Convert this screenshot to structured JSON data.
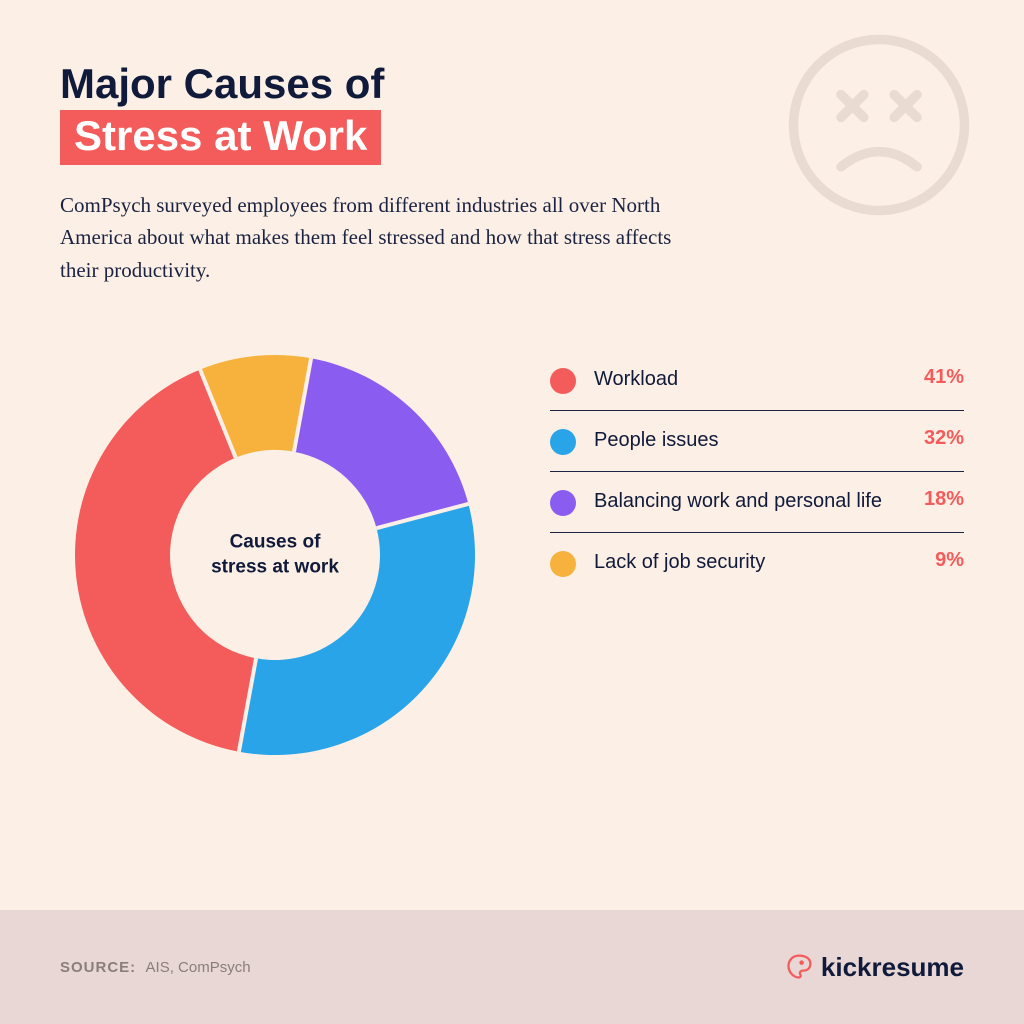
{
  "layout": {
    "background_color": "#fcefe5",
    "footer_background_color": "#e8d7d5",
    "divider_color": "#1a2341"
  },
  "title": {
    "line1": "Major Causes of",
    "line2": "Stress at Work",
    "color": "#101a3a",
    "highlight_bg": "#f45b5b",
    "highlight_text_color": "#ffffff",
    "fontsize": 42
  },
  "subtitle": {
    "text": "ComPsych surveyed employees from different industries all over North America about what makes them feel stressed and how that stress affects their productivity.",
    "color": "#1a2341",
    "fontsize": 21
  },
  "sad_face": {
    "stroke": "#e9dbd1",
    "stroke_width": 5,
    "size": 190
  },
  "chart": {
    "type": "donut",
    "center_label_line1": "Causes of",
    "center_label_line2": "stress at work",
    "center_label_color": "#101a3a",
    "center_label_fontsize": 19,
    "size": 430,
    "outer_radius": 200,
    "inner_radius": 105,
    "gap_color": "#fcefe5",
    "gap_width": 4,
    "start_angle_deg": -22,
    "slices": [
      {
        "label": "Workload",
        "value": 41,
        "color": "#f45b5b"
      },
      {
        "label": "People issues",
        "value": 32,
        "color": "#2aa4e8"
      },
      {
        "label": "Balancing work and personal life",
        "value": 18,
        "color": "#8a5cf0"
      },
      {
        "label": "Lack of job security",
        "value": 9,
        "color": "#f7b23e"
      }
    ]
  },
  "legend": {
    "label_color": "#101a3a",
    "label_fontsize": 20,
    "pct_color": "#f45b5b",
    "pct_fontsize": 20,
    "items": [
      {
        "label": "Workload",
        "pct": "41%",
        "color": "#f45b5b"
      },
      {
        "label": "People issues",
        "pct": "32%",
        "color": "#2aa4e8"
      },
      {
        "label": "Balancing work and personal life",
        "pct": "18%",
        "color": "#8a5cf0"
      },
      {
        "label": "Lack of job security",
        "pct": "9%",
        "color": "#f7b23e"
      }
    ]
  },
  "footer": {
    "source_label": "SOURCE:",
    "source_value": "AIS, ComPsych",
    "source_label_color": "#8a7e7a",
    "source_value_color": "#8a7e7a",
    "source_fontsize": 15,
    "brand_name": "kickresume",
    "brand_color": "#101a3a",
    "brand_accent": "#f45b5b",
    "brand_fontsize": 26
  }
}
